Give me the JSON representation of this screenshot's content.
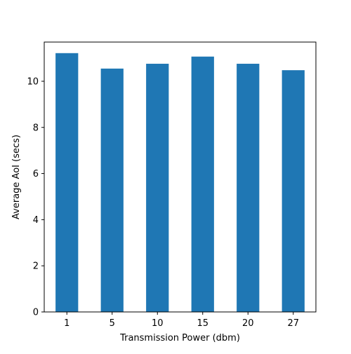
{
  "chart_data": {
    "type": "bar",
    "title": "",
    "xlabel": "Transmission Power (dbm)",
    "ylabel": "Average AoI (secs)",
    "categories": [
      "1",
      "5",
      "10",
      "15",
      "20",
      "27"
    ],
    "values": [
      11.22,
      10.55,
      10.76,
      11.07,
      10.76,
      10.48
    ],
    "ylim": [
      0,
      11.7
    ],
    "yticks": [
      0,
      2,
      4,
      6,
      8,
      10
    ],
    "bar_color": "#1f77b4",
    "grid": false,
    "legend": "none"
  }
}
